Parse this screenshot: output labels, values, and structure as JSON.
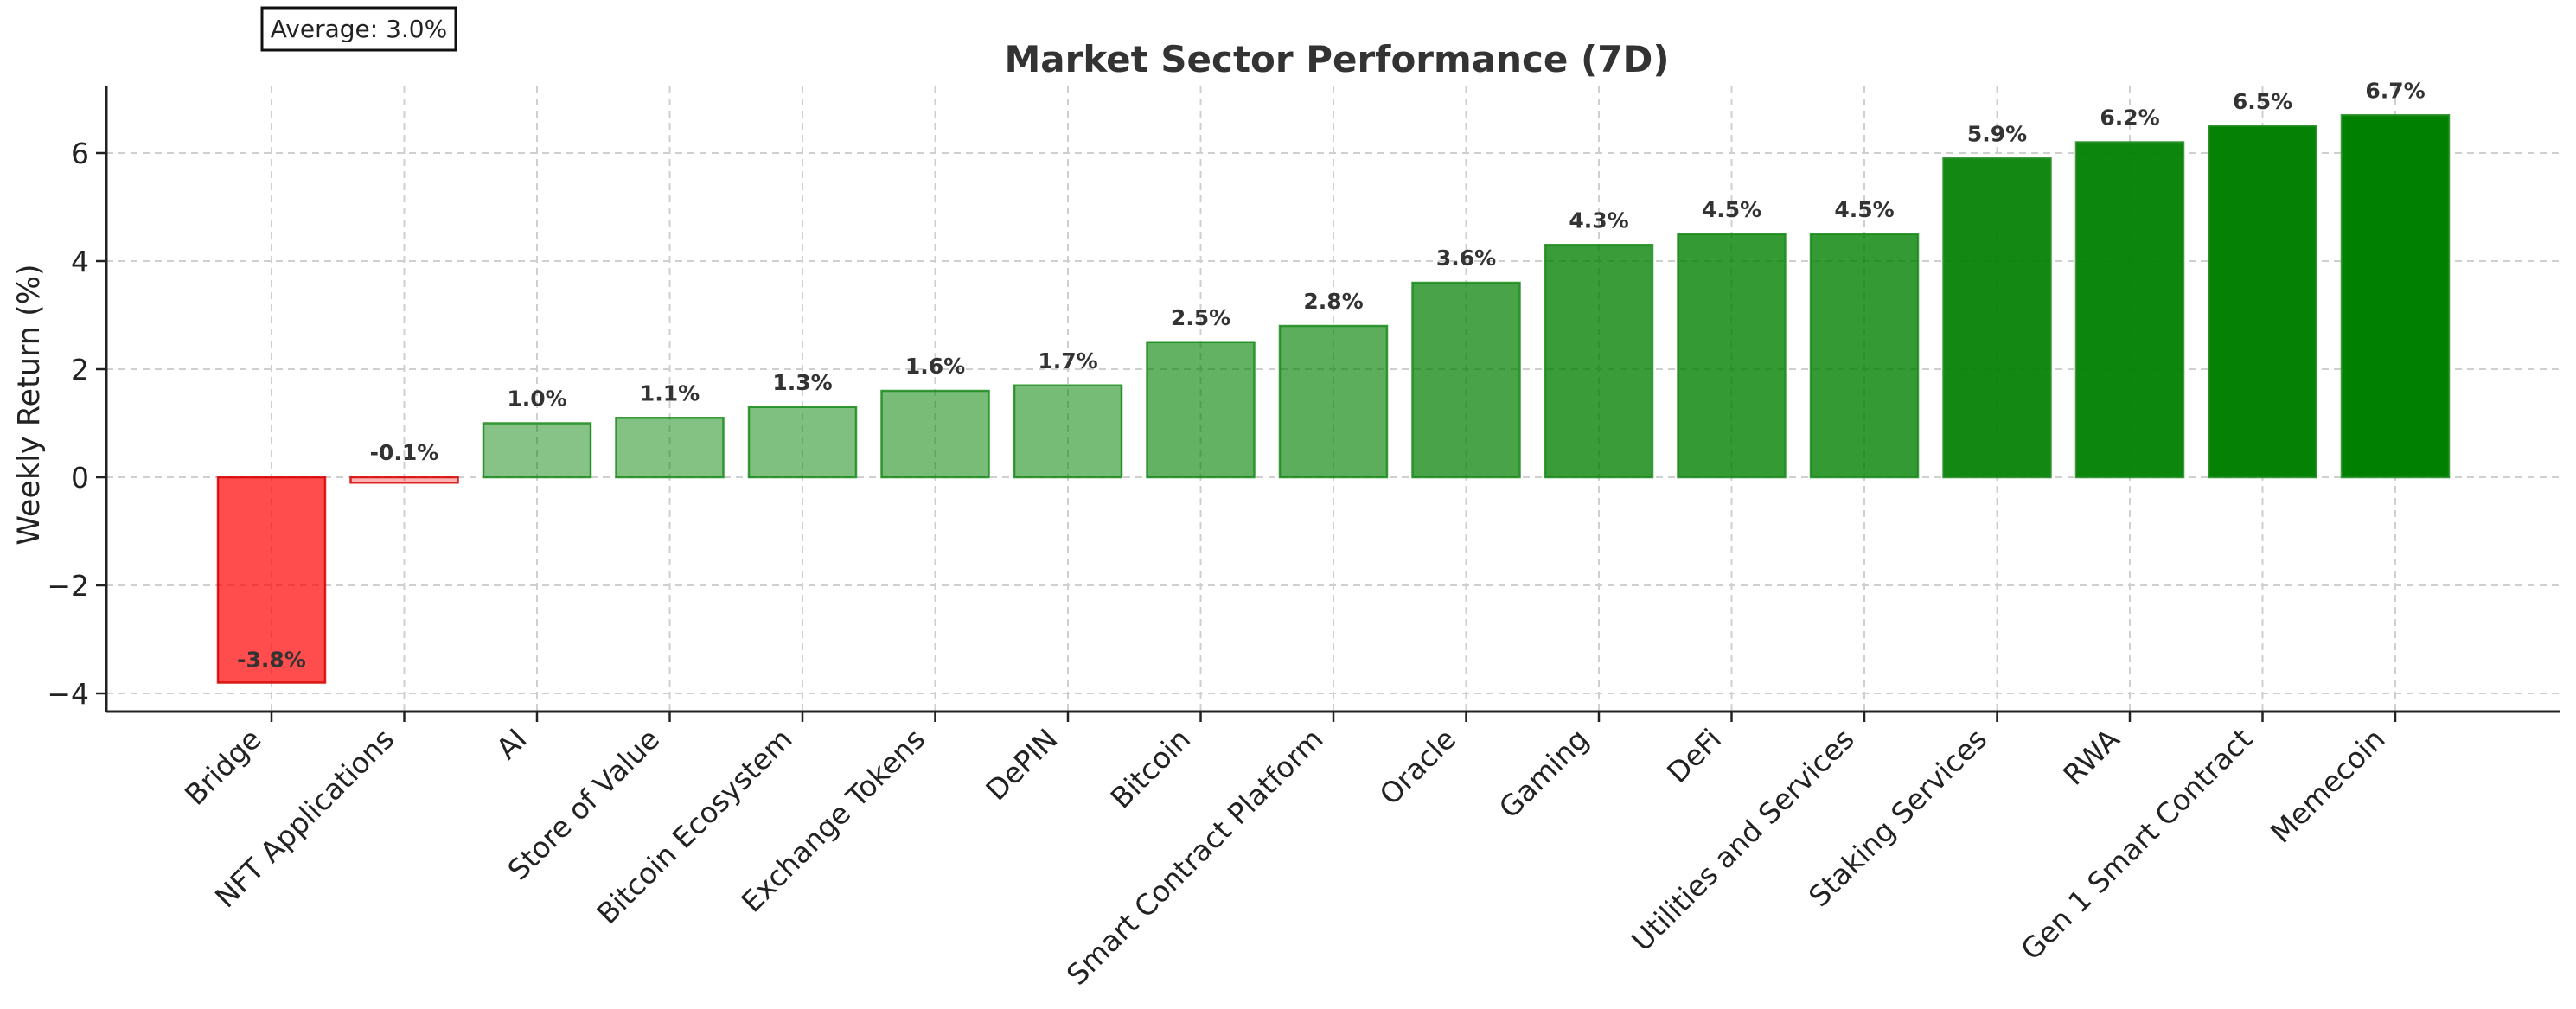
{
  "chart_data": {
    "type": "bar",
    "title": "Market Sector Performance (7D)",
    "xlabel": "",
    "ylabel": "Weekly Return (%)",
    "ylim": [
      -4.35,
      7.3
    ],
    "yticks": [
      -4,
      -2,
      0,
      2,
      4,
      6
    ],
    "ytick_labels": [
      "−4",
      "−2",
      "0",
      "2",
      "4",
      "6"
    ],
    "grid": true,
    "annotation": "Average: 3.0%",
    "categories": [
      "Bridge",
      "NFT Applications",
      "AI",
      "Store of Value",
      "Bitcoin Ecosystem",
      "Exchange Tokens",
      "DePIN",
      "Bitcoin",
      "Smart Contract Platform",
      "Oracle",
      "Gaming",
      "DeFi",
      "Utilities and Services",
      "Staking Services",
      "RWA",
      "Gen 1 Smart Contract",
      "Memecoin"
    ],
    "values": [
      -3.8,
      -0.1,
      1.0,
      1.1,
      1.3,
      1.6,
      1.7,
      2.5,
      2.8,
      3.6,
      4.3,
      4.5,
      4.5,
      5.9,
      6.2,
      6.5,
      6.7
    ],
    "value_labels": [
      "-3.8%",
      "-0.1%",
      "1.0%",
      "1.1%",
      "1.3%",
      "1.6%",
      "1.7%",
      "2.5%",
      "2.8%",
      "3.6%",
      "4.3%",
      "4.5%",
      "4.5%",
      "5.9%",
      "6.2%",
      "6.5%",
      "6.7%"
    ],
    "colors": {
      "negative_fill": "#ff0000",
      "negative_edge": "#d40000",
      "positive_fill": "#008000",
      "positive_edge": "#1a8a1a"
    }
  }
}
